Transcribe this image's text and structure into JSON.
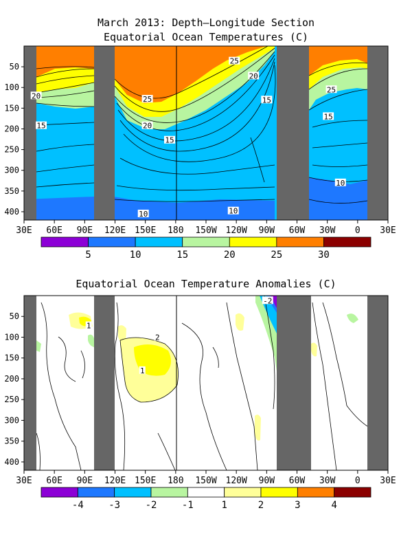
{
  "chart_data": [
    {
      "type": "heatmap",
      "title_line1": "March 2013: Depth–Longitude Section",
      "title_line2": "Equatorial Ocean Temperatures (C)",
      "xlabel": "",
      "ylabel": "",
      "x_ticks": [
        "30E",
        "60E",
        "90E",
        "120E",
        "150E",
        "180",
        "150W",
        "120W",
        "90W",
        "60W",
        "30W",
        "0",
        "30E"
      ],
      "y_ticks": [
        "50",
        "100",
        "150",
        "200",
        "250",
        "300",
        "350",
        "400"
      ],
      "xlim": [
        30,
        390
      ],
      "ylim": [
        0,
        420
      ],
      "colorbar": {
        "colors": [
          "#8c00d6",
          "#1e78ff",
          "#00c0ff",
          "#b8f5a0",
          "#ffff00",
          "#ff7f00",
          "#8b0000"
        ],
        "labels": [
          "5",
          "10",
          "15",
          "20",
          "25",
          "30"
        ]
      },
      "contour_labels": [
        {
          "text": "25",
          "lon": 238,
          "depth": 36
        },
        {
          "text": "20",
          "lon": 257,
          "depth": 72
        },
        {
          "text": "15",
          "lon": 270,
          "depth": 130
        },
        {
          "text": "25",
          "lon": 152,
          "depth": 128
        },
        {
          "text": "20",
          "lon": 152,
          "depth": 192
        },
        {
          "text": "15",
          "lon": 174,
          "depth": 227
        },
        {
          "text": "20",
          "lon": 42,
          "depth": 120
        },
        {
          "text": "15",
          "lon": 47,
          "depth": 192
        },
        {
          "text": "10",
          "lon": 148,
          "depth": 405
        },
        {
          "text": "10",
          "lon": 237,
          "depth": 398
        },
        {
          "text": "10",
          "lon": 343,
          "depth": 330
        },
        {
          "text": "25",
          "lon": 334,
          "depth": 105
        },
        {
          "text": "15",
          "lon": 331,
          "depth": 170
        }
      ]
    },
    {
      "type": "heatmap",
      "title": "Equatorial Ocean Temperature Anomalies (C)",
      "xlabel": "",
      "ylabel": "",
      "x_ticks": [
        "30E",
        "60E",
        "90E",
        "120E",
        "150E",
        "180",
        "150W",
        "120W",
        "90W",
        "60W",
        "30W",
        "0",
        "30E"
      ],
      "y_ticks": [
        "50",
        "100",
        "150",
        "200",
        "250",
        "300",
        "350",
        "400"
      ],
      "xlim": [
        30,
        390
      ],
      "ylim": [
        0,
        420
      ],
      "colorbar": {
        "colors": [
          "#8c00d6",
          "#1e78ff",
          "#00c0ff",
          "#b8f5a0",
          "#ffffff",
          "#ffff99",
          "#ffff00",
          "#ff7f00",
          "#8b0000"
        ],
        "labels": [
          "-4",
          "-3",
          "-2",
          "-1",
          "1",
          "2",
          "3",
          "4"
        ]
      },
      "contour_labels": [
        {
          "text": "-2",
          "lon": 271,
          "depth": 12
        },
        {
          "text": "1",
          "lon": 94,
          "depth": 72
        },
        {
          "text": "2",
          "lon": 162,
          "depth": 100
        },
        {
          "text": "1",
          "lon": 147,
          "depth": 180
        }
      ]
    }
  ]
}
